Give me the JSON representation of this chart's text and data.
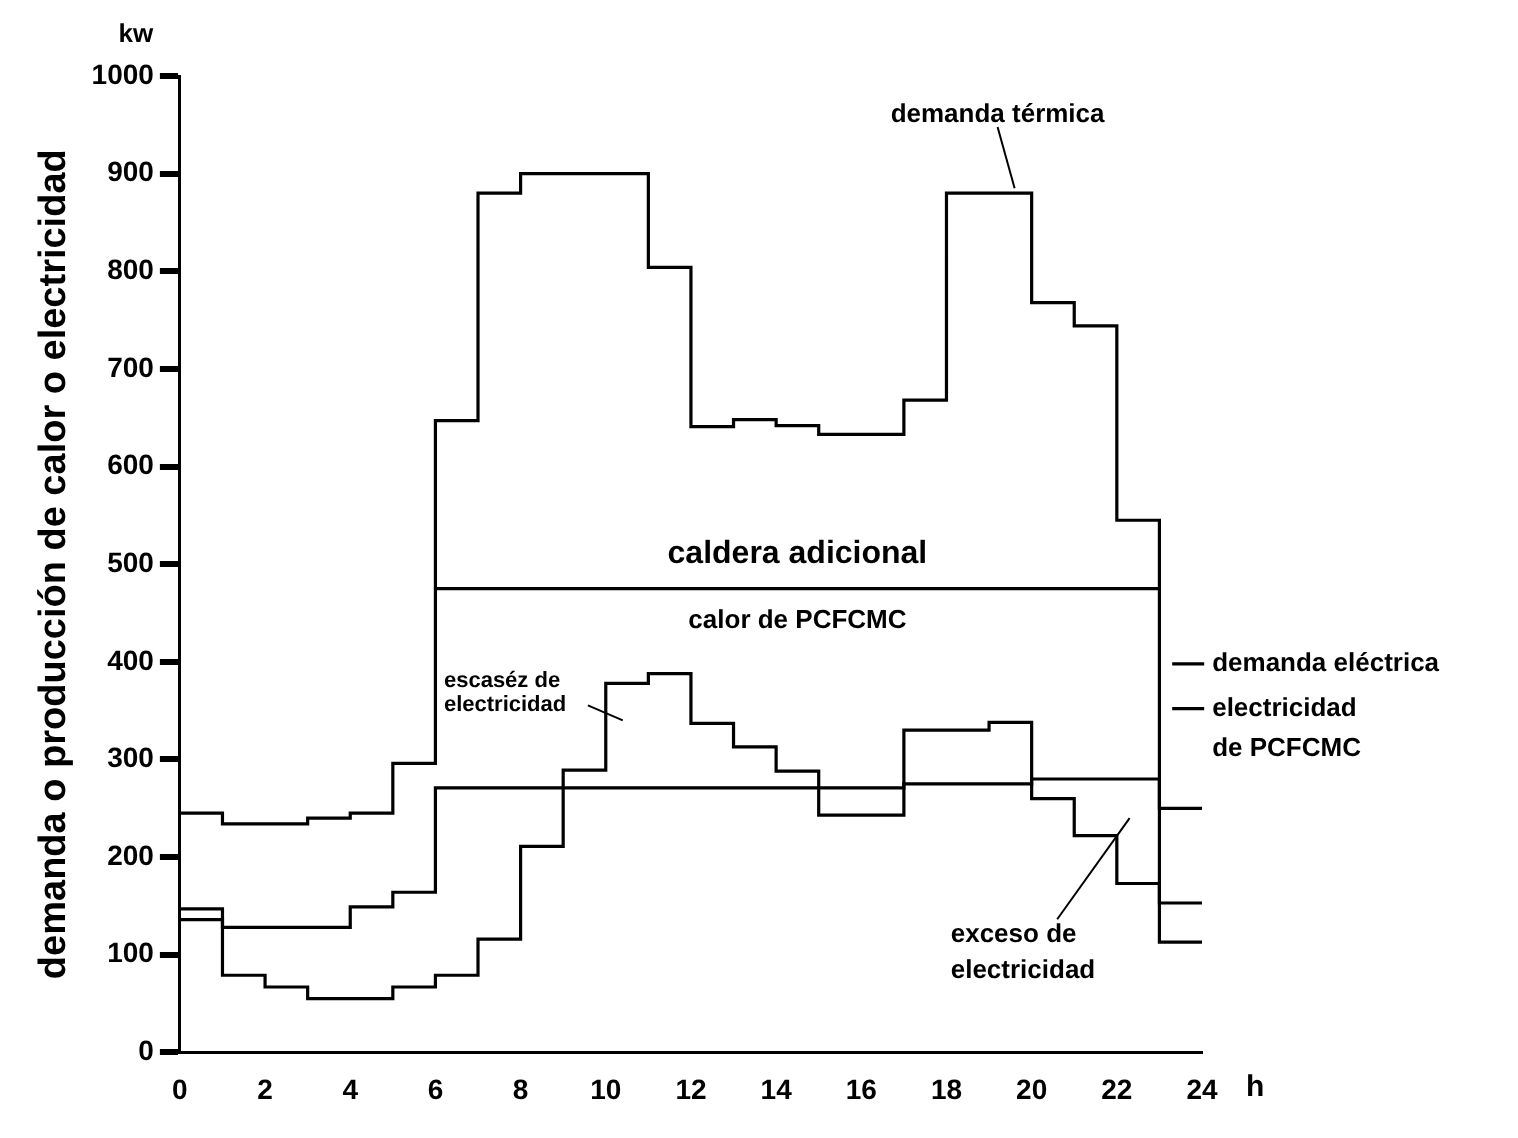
{
  "chart_data": {
    "type": "step",
    "xlabel": "h",
    "ylabel": "demanda o producción de calor o electricidad",
    "annotations": [
      "kw",
      "caldera adicional",
      "escaséz de electricidad",
      "exceso de electricidad"
    ],
    "x": [
      0,
      1,
      2,
      3,
      4,
      5,
      6,
      7,
      8,
      9,
      10,
      11,
      12,
      13,
      14,
      15,
      16,
      17,
      18,
      19,
      20,
      21,
      22,
      23,
      24
    ],
    "xlim": [
      0,
      24
    ],
    "xticks": [
      0,
      2,
      4,
      6,
      8,
      10,
      12,
      14,
      16,
      18,
      20,
      22,
      24
    ],
    "legend": "right",
    "ylim": [
      0,
      1000
    ],
    "yticks": [
      0,
      100,
      200,
      300,
      400,
      500,
      600,
      700,
      800,
      900,
      1000
    ],
    "series": [
      {
        "name": "demanda térmica",
        "color": "#000000",
        "values": [
          245,
          234,
          234,
          240,
          245,
          296,
          647,
          880,
          900,
          900,
          900,
          804,
          641,
          648,
          642,
          633,
          633,
          668,
          880,
          880,
          768,
          744,
          545,
          250,
          250
        ]
      },
      {
        "name": "calor de PCFCMC",
        "color": "#000000",
        "values": [
          null,
          null,
          null,
          null,
          null,
          null,
          475,
          475,
          475,
          475,
          475,
          475,
          475,
          475,
          475,
          475,
          475,
          475,
          475,
          475,
          475,
          475,
          475,
          475,
          null
        ]
      },
      {
        "name": "demanda eléctrica",
        "color": "#000000",
        "values": [
          136,
          79,
          67,
          55,
          55,
          67,
          79,
          116,
          211,
          289,
          378,
          388,
          337,
          313,
          288,
          243,
          243,
          330,
          330,
          338,
          260,
          222,
          173,
          113,
          113
        ]
      },
      {
        "name": "electricidad de PCFCMC",
        "color": "#000000",
        "values": [
          147,
          128,
          128,
          128,
          149,
          164,
          271,
          271,
          271,
          271,
          271,
          271,
          271,
          271,
          271,
          271,
          271,
          275,
          275,
          275,
          280,
          280,
          280,
          153,
          153
        ]
      }
    ]
  }
}
